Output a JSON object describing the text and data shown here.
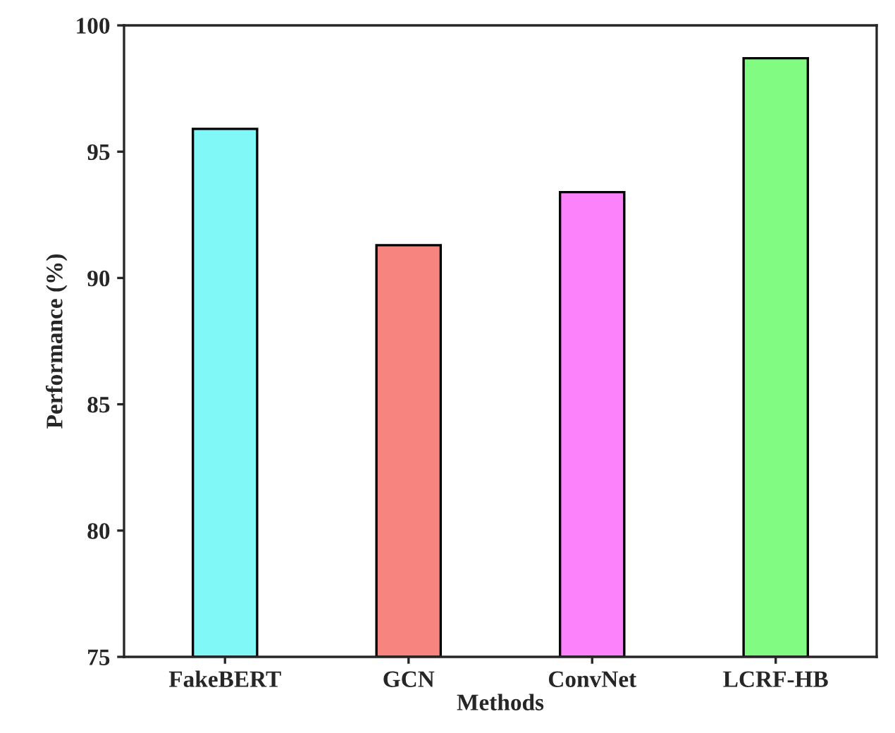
{
  "chart_data": {
    "type": "bar",
    "xlabel": "Methods",
    "ylabel": "Performance (%)",
    "categories": [
      "FakeBERT",
      "GCN",
      "ConvNet",
      "LCRF-HB"
    ],
    "values": [
      95.9,
      91.3,
      93.4,
      98.7
    ],
    "colors": [
      "#80f8f8",
      "#f88480",
      "#fb82fb",
      "#82fb82"
    ],
    "ylim": [
      75,
      100
    ],
    "yticks": [
      75,
      80,
      85,
      90,
      95,
      100
    ],
    "grid": false
  }
}
